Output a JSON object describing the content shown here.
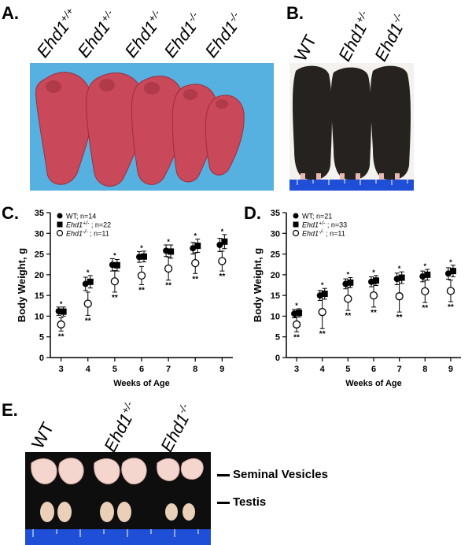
{
  "panels": {
    "a": {
      "label": "A.",
      "genotypes": [
        {
          "base": "Ehd1",
          "sup": "+/+"
        },
        {
          "base": "Ehd1",
          "sup": "+/-"
        },
        {
          "base": "Ehd1",
          "sup": "+/-"
        },
        {
          "base": "Ehd1",
          "sup": "-/-"
        },
        {
          "base": "Ehd1",
          "sup": "-/-"
        }
      ]
    },
    "b": {
      "label": "B.",
      "genotypes": [
        {
          "base": "WT",
          "sup": ""
        },
        {
          "base": "Ehd1",
          "sup": "+/-"
        },
        {
          "base": "Ehd1",
          "sup": "-/-"
        }
      ]
    },
    "c": {
      "label": "C."
    },
    "d": {
      "label": "D."
    },
    "e": {
      "label": "E.",
      "genotypes": [
        {
          "base": "WT",
          "sup": ""
        },
        {
          "base": "Ehd1",
          "sup": "+/-"
        },
        {
          "base": "Ehd1",
          "sup": "-/-"
        }
      ],
      "labels": {
        "seminal": "Seminal Vesicles",
        "testis": "Testis"
      }
    }
  },
  "colors": {
    "pup_bg": "#56b0e0",
    "pup": "#c9485a",
    "mouse_bg": "#f3f2ee",
    "mouse": "#262220",
    "ruler": "#1f4fd6",
    "organ_bg": "#0e0e0e",
    "organ": "#f4d6cf"
  },
  "chart_data": [
    {
      "type": "scatter",
      "panel": "C.",
      "xlabel": "Weeks of Age",
      "ylabel": "Body Weight, g",
      "x": [
        3,
        4,
        5,
        6,
        7,
        8,
        9
      ],
      "xlim": [
        2.6,
        9.4
      ],
      "ylim": [
        0,
        35
      ],
      "yticks": [
        0,
        5,
        10,
        15,
        20,
        25,
        30,
        35
      ],
      "legend_position": "top-left",
      "series": [
        {
          "name": "WT; n=14",
          "marker": "filled-circle",
          "values": [
            11.2,
            17.8,
            22.4,
            24.3,
            25.8,
            26.4,
            27.2
          ],
          "err": [
            1.0,
            1.6,
            1.5,
            1.3,
            1.4,
            1.4,
            1.6
          ]
        },
        {
          "name": "Ehd1+/- ; n=22",
          "label_base": "Ehd1",
          "label_sup": "+/-",
          "label_rest": " ; n=22",
          "marker": "filled-square",
          "values": [
            11.1,
            18.3,
            22.3,
            24.4,
            25.6,
            27.0,
            28.0
          ],
          "err": [
            1.1,
            1.5,
            1.4,
            1.3,
            1.6,
            1.6,
            1.7
          ]
        },
        {
          "name": "Ehd1-/- ; n=11",
          "label_base": "Ehd1",
          "label_sup": "-/-",
          "label_rest": " ; n=11",
          "marker": "open-circle",
          "values": [
            8.0,
            13.0,
            18.4,
            19.8,
            21.5,
            22.8,
            23.3
          ],
          "err": [
            1.6,
            2.8,
            2.6,
            2.2,
            2.8,
            2.5,
            2.4
          ]
        }
      ],
      "annotations": {
        "upper": "*",
        "lower": "**"
      }
    },
    {
      "type": "scatter",
      "panel": "D.",
      "xlabel": "Weeks of Age",
      "ylabel": "Body Weight, g",
      "x": [
        3,
        4,
        5,
        6,
        7,
        8,
        9
      ],
      "xlim": [
        2.6,
        9.4
      ],
      "ylim": [
        0,
        35
      ],
      "yticks": [
        0,
        5,
        10,
        15,
        20,
        25,
        30,
        35
      ],
      "legend_position": "top-left",
      "series": [
        {
          "name": "WT; n=21",
          "marker": "filled-circle",
          "values": [
            10.6,
            15.0,
            17.8,
            18.3,
            19.0,
            19.6,
            20.3
          ],
          "err": [
            1.0,
            1.2,
            1.2,
            1.2,
            1.4,
            1.3,
            1.4
          ]
        },
        {
          "name": "Ehd1+/- ; n=33",
          "label_base": "Ehd1",
          "label_sup": "+/-",
          "label_rest": " ; n=33",
          "marker": "filled-square",
          "values": [
            10.8,
            15.4,
            18.1,
            18.6,
            19.3,
            20.0,
            20.9
          ],
          "err": [
            1.0,
            1.3,
            1.2,
            1.2,
            1.4,
            1.3,
            1.4
          ]
        },
        {
          "name": "Ehd1-/- ; n=11",
          "label_base": "Ehd1",
          "label_sup": "-/-",
          "label_rest": " ; n=11",
          "marker": "open-circle",
          "values": [
            8.0,
            11.0,
            14.2,
            15.0,
            14.8,
            16.0,
            16.1
          ],
          "err": [
            1.8,
            4.0,
            2.8,
            2.8,
            3.8,
            2.7,
            2.6
          ]
        }
      ],
      "annotations": {
        "upper": "*",
        "lower": "**"
      }
    }
  ]
}
